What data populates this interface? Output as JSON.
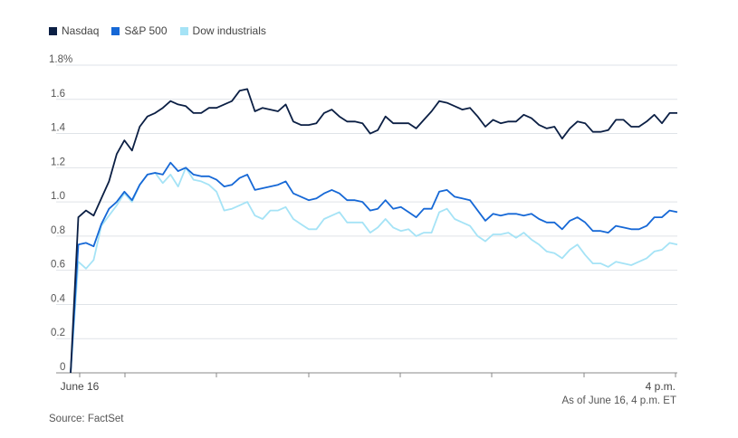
{
  "legend": [
    {
      "name": "Nasdaq",
      "color": "#0b1f44"
    },
    {
      "name": "S&P 500",
      "color": "#1668d6"
    },
    {
      "name": "Dow industrials",
      "color": "#a5e3f6"
    }
  ],
  "as_of": "As of June 16, 4 p.m. ET",
  "source": "Source: FactSet",
  "chart_data": {
    "type": "line",
    "title": "",
    "xlabel": "",
    "ylabel": "",
    "ylim": [
      0,
      1.8
    ],
    "y_ticks": [
      "0",
      "0.2",
      "0.4",
      "0.6",
      "0.8",
      "1.0",
      "1.2",
      "1.4",
      "1.6",
      "1.8%"
    ],
    "x_tick_labels": [
      {
        "label": "June 16",
        "x": 0
      },
      {
        "label": "4 p.m.",
        "x": 63
      }
    ],
    "grid": "horizontal",
    "legend_position": "top-left",
    "series": [
      {
        "name": "Nasdaq",
        "color": "#0b1f44",
        "values": [
          0.0,
          0.91,
          0.95,
          0.92,
          1.02,
          1.12,
          1.28,
          1.36,
          1.3,
          1.44,
          1.5,
          1.52,
          1.55,
          1.59,
          1.57,
          1.56,
          1.52,
          1.52,
          1.55,
          1.55,
          1.57,
          1.59,
          1.65,
          1.66,
          1.53,
          1.55,
          1.54,
          1.53,
          1.57,
          1.47,
          1.45,
          1.45,
          1.46,
          1.52,
          1.54,
          1.5,
          1.47,
          1.47,
          1.46,
          1.4,
          1.42,
          1.5,
          1.46,
          1.46,
          1.46,
          1.43,
          1.48,
          1.53,
          1.59,
          1.58,
          1.56,
          1.54,
          1.55,
          1.5,
          1.44,
          1.48,
          1.46,
          1.47,
          1.47,
          1.51,
          1.49,
          1.45,
          1.43,
          1.44,
          1.37,
          1.43,
          1.47,
          1.46,
          1.41,
          1.41,
          1.42,
          1.48,
          1.48,
          1.44,
          1.44,
          1.47,
          1.51,
          1.46,
          1.52,
          1.52
        ]
      },
      {
        "name": "S&P 500",
        "color": "#1668d6",
        "values": [
          0.0,
          0.75,
          0.76,
          0.74,
          0.87,
          0.96,
          1.0,
          1.06,
          1.01,
          1.1,
          1.16,
          1.17,
          1.16,
          1.23,
          1.18,
          1.2,
          1.16,
          1.15,
          1.15,
          1.13,
          1.09,
          1.1,
          1.14,
          1.16,
          1.07,
          1.08,
          1.09,
          1.1,
          1.12,
          1.05,
          1.03,
          1.01,
          1.02,
          1.05,
          1.07,
          1.05,
          1.01,
          1.01,
          1.0,
          0.95,
          0.96,
          1.01,
          0.96,
          0.97,
          0.94,
          0.91,
          0.96,
          0.96,
          1.06,
          1.07,
          1.03,
          1.02,
          1.01,
          0.95,
          0.89,
          0.93,
          0.92,
          0.93,
          0.93,
          0.92,
          0.93,
          0.9,
          0.88,
          0.88,
          0.84,
          0.89,
          0.91,
          0.88,
          0.83,
          0.83,
          0.82,
          0.86,
          0.85,
          0.84,
          0.84,
          0.86,
          0.91,
          0.91,
          0.95,
          0.94
        ]
      },
      {
        "name": "Dow industrials",
        "color": "#a5e3f6",
        "values": [
          0.0,
          0.65,
          0.61,
          0.66,
          0.86,
          0.92,
          0.98,
          1.05,
          1.0,
          1.1,
          1.16,
          1.17,
          1.11,
          1.16,
          1.09,
          1.2,
          1.13,
          1.12,
          1.1,
          1.06,
          0.95,
          0.96,
          0.98,
          1.0,
          0.92,
          0.9,
          0.95,
          0.95,
          0.97,
          0.9,
          0.87,
          0.84,
          0.84,
          0.9,
          0.92,
          0.94,
          0.88,
          0.88,
          0.88,
          0.82,
          0.85,
          0.9,
          0.85,
          0.83,
          0.84,
          0.8,
          0.82,
          0.82,
          0.94,
          0.96,
          0.9,
          0.88,
          0.86,
          0.8,
          0.77,
          0.81,
          0.81,
          0.82,
          0.79,
          0.82,
          0.78,
          0.75,
          0.71,
          0.7,
          0.67,
          0.72,
          0.75,
          0.69,
          0.64,
          0.64,
          0.62,
          0.65,
          0.64,
          0.63,
          0.65,
          0.67,
          0.71,
          0.72,
          0.76,
          0.75
        ]
      }
    ]
  }
}
